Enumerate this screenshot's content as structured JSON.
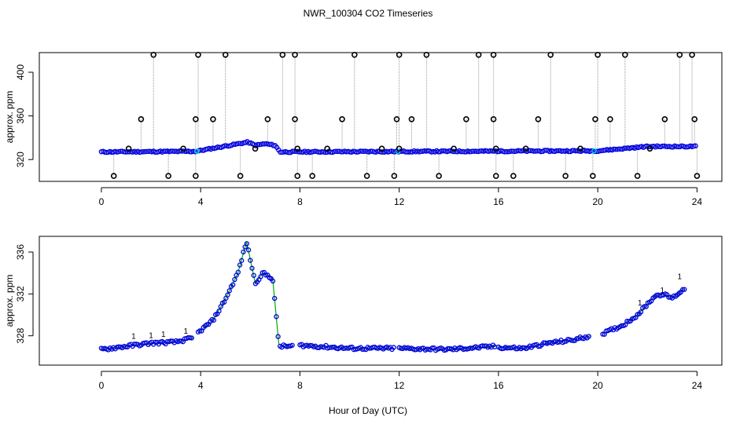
{
  "title": "NWR_100304  CO2 Timeseries",
  "xlabel": "Hour of Day (UTC)",
  "colors": {
    "frame": "#000000",
    "points": "#0000dd",
    "cyan": "#00dddd",
    "green": "#00aa00",
    "red": "#dd0000",
    "whisker": "#999999"
  },
  "chart_data": [
    {
      "type": "scatter",
      "ylabel": "approx. ppm",
      "xlim": [
        -2.5,
        25
      ],
      "ylim": [
        300,
        418
      ],
      "xticks": [
        0,
        4,
        8,
        12,
        16,
        20,
        24
      ],
      "yticks": [
        320,
        360,
        400
      ],
      "baseline": [
        [
          0,
          327
        ],
        [
          3.8,
          327.5
        ],
        [
          5.9,
          336
        ],
        [
          6.2,
          333
        ],
        [
          6.6,
          334.5
        ],
        [
          7.0,
          333
        ],
        [
          7.2,
          327
        ],
        [
          20,
          328
        ],
        [
          22,
          332
        ],
        [
          23.5,
          332
        ]
      ],
      "outlier_top": [
        2.1,
        3.9,
        5.0,
        7.3,
        7.8,
        10.2,
        12.0,
        13.1,
        15.2,
        15.8,
        18.1,
        20.0,
        21.1,
        23.3,
        23.8
      ],
      "outlier_mid": [
        1.6,
        3.8,
        4.5,
        6.7,
        7.8,
        9.7,
        11.9,
        12.5,
        14.7,
        15.8,
        17.6,
        19.9,
        20.5,
        22.7,
        23.9
      ],
      "outlier_low": [
        0.5,
        2.7,
        3.8,
        5.6,
        7.9,
        8.5,
        10.7,
        11.8,
        13.6,
        15.9,
        16.6,
        18.7,
        19.8,
        21.6,
        24.0
      ],
      "outlier_near": [
        1.1,
        3.3,
        6.2,
        7.9,
        9.1,
        11.3,
        12.0,
        14.2,
        15.9,
        17.1,
        19.3,
        22.1
      ],
      "outlier_values": {
        "top": 416,
        "mid": 357,
        "low": 305,
        "near": 330
      }
    },
    {
      "type": "scatter",
      "ylabel": "approx. ppm",
      "xlim": [
        -2.5,
        25
      ],
      "ylim": [
        325.2,
        337.5
      ],
      "xticks": [
        0,
        4,
        8,
        12,
        16,
        20,
        24
      ],
      "yticks": [
        328,
        332,
        336
      ],
      "segments": [
        [
          [
            0,
            326.7
          ],
          [
            1,
            327.0
          ],
          [
            2,
            327.3
          ],
          [
            3,
            327.4
          ],
          [
            3.7,
            327.8
          ]
        ],
        [
          [
            3.9,
            328.3
          ],
          [
            4.5,
            329.5
          ],
          [
            5.0,
            331.5
          ],
          [
            5.5,
            334.0
          ],
          [
            5.85,
            337.0
          ],
          [
            6.2,
            333.0
          ],
          [
            6.5,
            334.0
          ],
          [
            6.9,
            333.5
          ],
          [
            7.15,
            327.2
          ]
        ],
        [
          [
            7.2,
            327.0
          ],
          [
            7.7,
            327.0
          ]
        ],
        [
          [
            8.0,
            327.1
          ],
          [
            10,
            326.8
          ],
          [
            11.8,
            326.8
          ]
        ],
        [
          [
            12.0,
            326.8
          ],
          [
            14,
            326.7
          ],
          [
            15.9,
            327.0
          ]
        ],
        [
          [
            16.0,
            326.9
          ],
          [
            17,
            326.8
          ],
          [
            18,
            327.3
          ],
          [
            19,
            327.6
          ],
          [
            19.7,
            328.0
          ]
        ],
        [
          [
            20.2,
            328.2
          ],
          [
            21,
            329.0
          ],
          [
            21.6,
            330.0
          ],
          [
            22.3,
            331.8
          ],
          [
            22.6,
            332.0
          ],
          [
            23.0,
            331.6
          ],
          [
            23.5,
            332.5
          ]
        ]
      ],
      "red_marks": [
        [
          1.3,
          327.7
        ],
        [
          2.0,
          327.8
        ],
        [
          2.5,
          327.9
        ],
        [
          3.4,
          328.2
        ],
        [
          21.7,
          330.9
        ],
        [
          22.6,
          332.1
        ],
        [
          23.3,
          333.4
        ]
      ]
    }
  ]
}
